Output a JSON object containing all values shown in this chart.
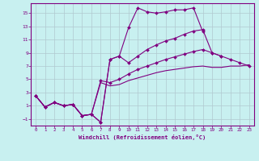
{
  "xlabel": "Windchill (Refroidissement éolien,°C)",
  "background_color": "#c8f0f0",
  "line_color": "#800080",
  "grid_color": "#b0c8d0",
  "xlim": [
    -0.5,
    23.5
  ],
  "ylim": [
    -2,
    16.5
  ],
  "xticks": [
    0,
    1,
    2,
    3,
    4,
    5,
    6,
    7,
    8,
    9,
    10,
    11,
    12,
    13,
    14,
    15,
    16,
    17,
    18,
    19,
    20,
    21,
    22,
    23
  ],
  "yticks": [
    -1,
    1,
    3,
    5,
    7,
    9,
    11,
    13,
    15
  ],
  "line1_x": [
    0,
    1,
    2,
    3,
    4,
    5,
    6,
    7,
    8,
    9,
    10,
    11,
    12,
    13,
    14,
    15,
    16,
    17,
    18,
    19,
    20
  ],
  "line1_y": [
    2.5,
    0.8,
    1.5,
    1.0,
    1.2,
    -0.5,
    -0.3,
    -1.5,
    8.0,
    8.5,
    12.8,
    15.8,
    15.2,
    15.0,
    15.2,
    15.5,
    15.5,
    15.8,
    12.2,
    null,
    null
  ],
  "line2_x": [
    0,
    1,
    2,
    3,
    4,
    5,
    6,
    7,
    8,
    9,
    10,
    11,
    12,
    13,
    14,
    15,
    16,
    17,
    18,
    19,
    20,
    21,
    22,
    23
  ],
  "line2_y": [
    2.5,
    0.8,
    1.5,
    1.0,
    1.2,
    -0.5,
    -0.3,
    -1.5,
    8.0,
    8.5,
    7.5,
    8.5,
    9.5,
    10.2,
    10.8,
    11.2,
    11.8,
    12.3,
    12.5,
    9.0,
    8.5,
    null,
    null,
    null
  ],
  "line3_x": [
    0,
    1,
    2,
    3,
    4,
    5,
    6,
    7,
    8,
    9,
    10,
    11,
    12,
    13,
    14,
    15,
    16,
    17,
    18,
    19,
    20,
    21,
    22,
    23
  ],
  "line3_y": [
    2.5,
    0.8,
    1.5,
    1.0,
    1.2,
    -0.5,
    -0.3,
    4.8,
    4.5,
    5.0,
    5.8,
    6.5,
    7.0,
    7.5,
    8.0,
    8.4,
    8.8,
    9.2,
    9.5,
    9.0,
    8.5,
    8.0,
    7.5,
    7.0
  ],
  "line4_x": [
    0,
    1,
    2,
    3,
    4,
    5,
    6,
    7,
    8,
    9,
    10,
    11,
    12,
    13,
    14,
    15,
    16,
    17,
    18,
    19,
    20,
    21,
    22,
    23
  ],
  "line4_y": [
    2.5,
    0.8,
    1.5,
    1.0,
    1.2,
    -0.5,
    -0.3,
    4.5,
    4.0,
    4.2,
    4.8,
    5.2,
    5.6,
    6.0,
    6.3,
    6.5,
    6.7,
    6.9,
    7.0,
    6.8,
    6.8,
    7.0,
    7.0,
    7.2
  ]
}
